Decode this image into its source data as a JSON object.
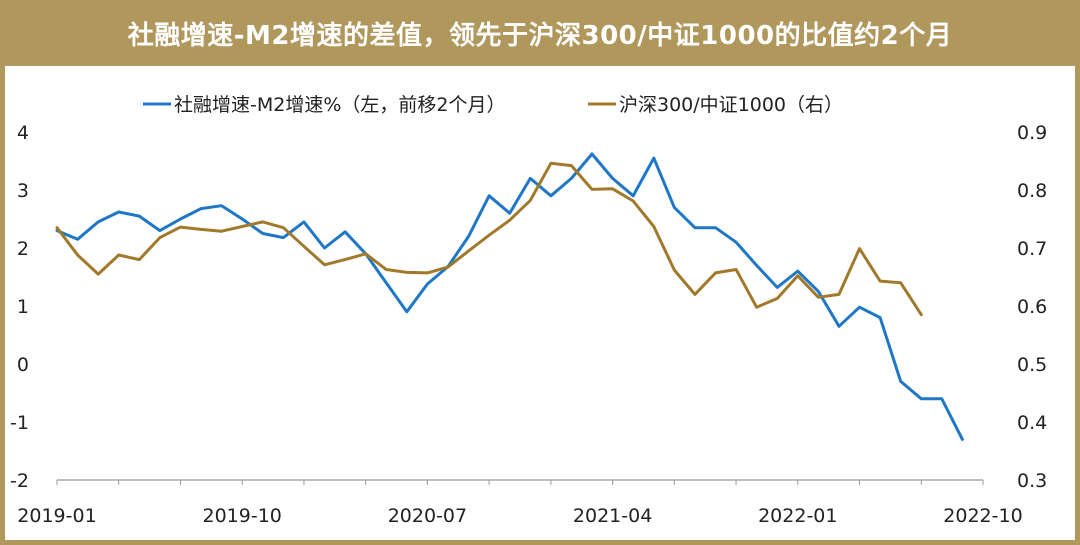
{
  "title": "社融增速-M2增速的差值，领先于沪深300/中证1000的比值约2个月",
  "colors": {
    "frame": "#b0975c",
    "series_left": "#1f77c8",
    "series_right": "#a07a2a"
  },
  "chart_data": {
    "type": "line",
    "title": "社融增速-M2增速的差值，领先于沪深300/中证1000的比值约2个月",
    "legend_position": "top",
    "grid": false,
    "x_ticks": [
      "2019-01",
      "2019-10",
      "2020-07",
      "2021-04",
      "2022-01",
      "2022-10"
    ],
    "y_left": {
      "ticks": [
        "4",
        "3",
        "2",
        "1",
        "0",
        "-1",
        "-2"
      ],
      "range": [
        -2,
        4
      ]
    },
    "y_right": {
      "ticks": [
        "0.9",
        "0.8",
        "0.7",
        "0.6",
        "0.5",
        "0.4",
        "0.3"
      ],
      "range": [
        0.3,
        0.9
      ]
    },
    "series": [
      {
        "name": "社融增速-M2增速%（左，前移2个月）",
        "axis": "left",
        "color": "#1f77c8",
        "x": [
          "2019-01",
          "2019-02",
          "2019-03",
          "2019-04",
          "2019-05",
          "2019-06",
          "2019-07",
          "2019-08",
          "2019-09",
          "2019-10",
          "2019-11",
          "2019-12",
          "2020-01",
          "2020-02",
          "2020-03",
          "2020-04",
          "2020-05",
          "2020-06",
          "2020-07",
          "2020-08",
          "2020-09",
          "2020-10",
          "2020-11",
          "2020-12",
          "2021-01",
          "2021-02",
          "2021-03",
          "2021-04",
          "2021-05",
          "2021-06",
          "2021-07",
          "2021-08",
          "2021-09",
          "2021-10",
          "2021-11",
          "2021-12",
          "2022-01",
          "2022-02",
          "2022-03",
          "2022-04",
          "2022-05",
          "2022-06",
          "2022-07",
          "2022-08",
          "2022-09"
        ],
        "values": [
          2.3,
          2.15,
          2.45,
          2.62,
          2.55,
          2.3,
          2.5,
          2.68,
          2.73,
          2.5,
          2.25,
          2.18,
          2.45,
          2.0,
          2.28,
          1.9,
          1.4,
          0.9,
          1.38,
          1.68,
          2.2,
          2.9,
          2.6,
          3.2,
          2.9,
          3.2,
          3.62,
          3.2,
          2.9,
          3.55,
          2.7,
          2.35,
          2.35,
          2.1,
          1.7,
          1.32,
          1.6,
          1.25,
          0.65,
          0.98,
          0.8,
          -0.3,
          -0.6,
          -0.6,
          -1.3
        ]
      },
      {
        "name": "沪深300/中证1000（右）",
        "axis": "right",
        "color": "#a07a2a",
        "x": [
          "2019-01",
          "2019-02",
          "2019-03",
          "2019-04",
          "2019-05",
          "2019-06",
          "2019-07",
          "2019-08",
          "2019-09",
          "2019-10",
          "2019-11",
          "2019-12",
          "2020-01",
          "2020-02",
          "2020-03",
          "2020-04",
          "2020-05",
          "2020-06",
          "2020-07",
          "2020-08",
          "2020-09",
          "2020-10",
          "2020-11",
          "2020-12",
          "2021-01",
          "2021-02",
          "2021-03",
          "2021-04",
          "2021-05",
          "2021-06",
          "2021-07",
          "2021-08",
          "2021-09",
          "2021-10",
          "2021-11",
          "2021-12",
          "2022-01",
          "2022-02",
          "2022-03",
          "2022-04",
          "2022-05",
          "2022-06",
          "2022-07"
        ],
        "values": [
          0.735,
          0.688,
          0.655,
          0.688,
          0.68,
          0.718,
          0.736,
          0.732,
          0.729,
          0.737,
          0.745,
          0.735,
          0.703,
          0.671,
          0.68,
          0.69,
          0.663,
          0.658,
          0.657,
          0.667,
          0.695,
          0.722,
          0.748,
          0.782,
          0.846,
          0.842,
          0.801,
          0.802,
          0.781,
          0.737,
          0.662,
          0.62,
          0.657,
          0.663,
          0.598,
          0.613,
          0.652,
          0.615,
          0.62,
          0.699,
          0.643,
          0.64,
          0.585
        ]
      }
    ]
  }
}
